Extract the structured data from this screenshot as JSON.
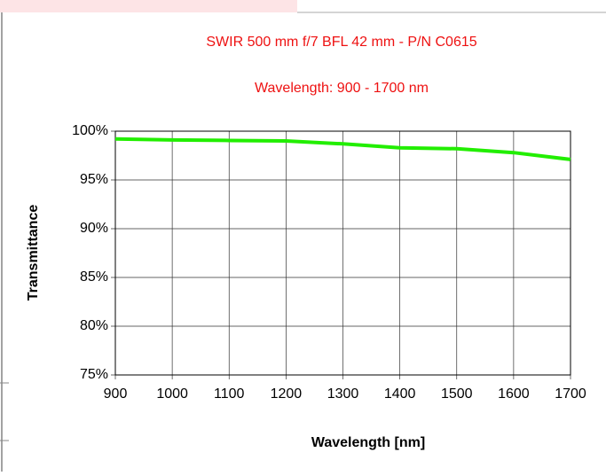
{
  "chart_data": {
    "type": "line",
    "title": "SWIR 500 mm f/7 BFL 42 mm - P/N C0615",
    "subtitle": "Wavelength: 900 - 1700 nm",
    "x_label": "Wavelength [nm]",
    "y_label": "Transmittance",
    "x": [
      900,
      1000,
      1100,
      1200,
      1300,
      1400,
      1500,
      1600,
      1700
    ],
    "series": [
      {
        "color": "#22ee00",
        "values": [
          99.2,
          99.1,
          99.05,
          99.0,
          98.7,
          98.3,
          98.2,
          97.8,
          97.1
        ]
      }
    ],
    "xlim": [
      900,
      1700
    ],
    "xticks": [
      900,
      1000,
      1100,
      1200,
      1300,
      1400,
      1500,
      1600,
      1700
    ],
    "ylim": [
      75,
      100
    ],
    "yticks": [
      {
        "value": 75,
        "label": "75%"
      },
      {
        "value": 80,
        "label": "80%"
      },
      {
        "value": 85,
        "label": "85%"
      },
      {
        "value": 90,
        "label": "90%"
      },
      {
        "value": 95,
        "label": "95%"
      },
      {
        "value": 100,
        "label": "100%"
      }
    ],
    "grid": true
  }
}
